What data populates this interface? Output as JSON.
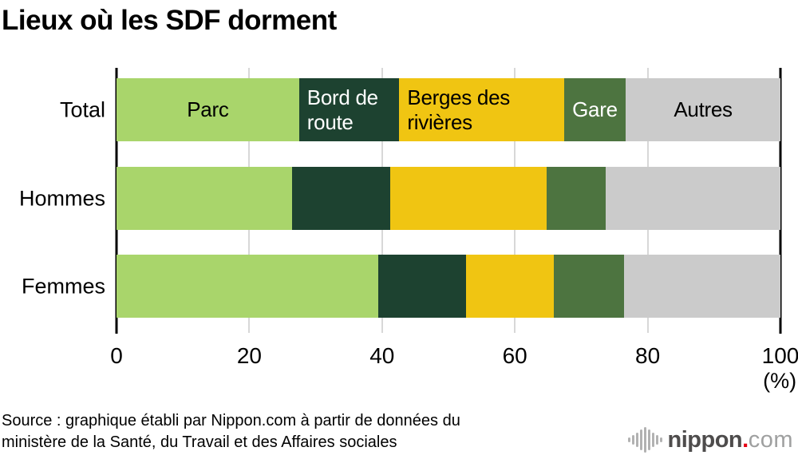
{
  "title": "Lieux où les SDF dorment",
  "source": {
    "line1": "Source : graphique établi par Nippon.com à partir de données du",
    "line2": "ministère de la Santé, du Travail et des Affaires sociales"
  },
  "logo": {
    "name": "nippon",
    "dot": ".",
    "tld": "com",
    "red": "#e60012",
    "name_color": "#4e4c4c",
    "tld_color": "#9fa0a0",
    "wave_color": "#b2b2b2"
  },
  "chart_data": {
    "type": "bar",
    "orientation": "horizontal",
    "stacked": true,
    "title": "Lieux où les SDF dorment",
    "categories": [
      "Total",
      "Hommes",
      "Femmes"
    ],
    "series": [
      {
        "name": "Parc",
        "color": "#a9d56b",
        "text_color": "#000000",
        "label_align": "center",
        "values": [
          27.5,
          26.4,
          39.4
        ]
      },
      {
        "name": "Bord de route",
        "color": "#1d4230",
        "text_color": "#ffffff",
        "label_align": "left",
        "values": [
          15.1,
          14.8,
          13.2
        ]
      },
      {
        "name": "Berges des rivières",
        "color": "#f0c512",
        "text_color": "#000000",
        "label_align": "left",
        "values": [
          24.8,
          23.6,
          13.3
        ]
      },
      {
        "name": "Gare",
        "color": "#4d7440",
        "text_color": "#ffffff",
        "label_align": "center",
        "values": [
          9.3,
          8.9,
          10.6
        ]
      },
      {
        "name": "Autres",
        "color": "#cbcbcb",
        "text_color": "#000000",
        "label_align": "center",
        "values": [
          23.3,
          26.3,
          23.5
        ]
      }
    ],
    "labels_shown_on_row": "Total",
    "x_ticks": [
      0,
      20,
      40,
      60,
      80,
      100
    ],
    "x_unit": "(%)",
    "xlim": [
      0,
      100
    ],
    "grid": "vertical-light-gray",
    "edge_lines_at": [
      0,
      100
    ],
    "legend": "none (labels inside first bar)"
  },
  "logo_wave_heights": [
    6,
    12,
    18,
    26,
    32,
    26,
    18,
    12,
    6
  ]
}
